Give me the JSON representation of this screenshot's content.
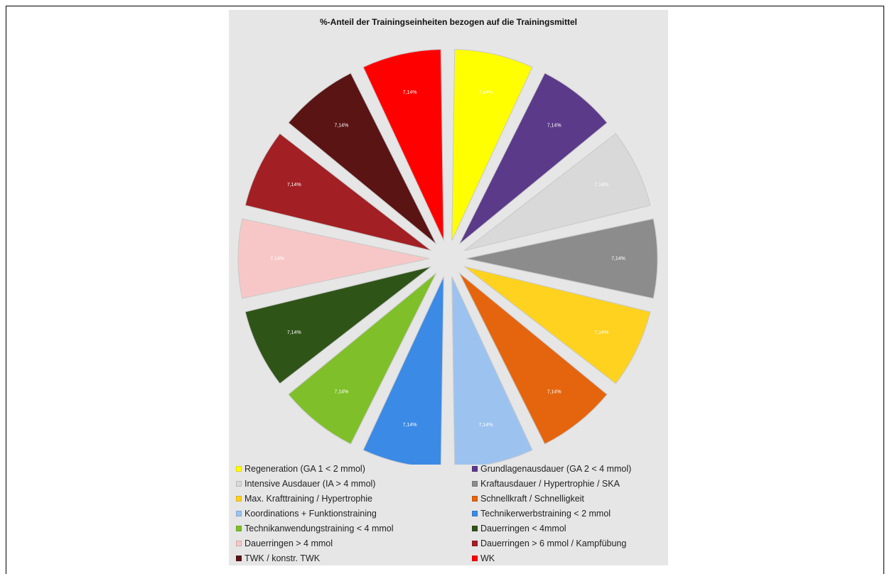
{
  "chart_data": {
    "type": "pie",
    "title": "%-Anteil der Trainingseinheiten bezogen auf die Trainingsmittel",
    "exploded": true,
    "legend_position": "bottom",
    "slices": [
      {
        "label": "Regeneration (GA 1 < 2 mmol)",
        "value": 7.14,
        "display": "7,14%",
        "color": "#ffff00"
      },
      {
        "label": "Grundlagenausdauer (GA 2 < 4 mmol)",
        "value": 7.14,
        "display": "7,14%",
        "color": "#5b3a8a"
      },
      {
        "label": "Intensive Ausdauer (IA > 4 mmol)",
        "value": 7.14,
        "display": "7,14%",
        "color": "#d9d9d9"
      },
      {
        "label": "Kraftausdauer / Hypertrophie / SKA",
        "value": 7.14,
        "display": "7,14%",
        "color": "#8c8c8c"
      },
      {
        "label": "Max. Krafttraining / Hypertrophie",
        "value": 7.14,
        "display": "7,14%",
        "color": "#ffd21f"
      },
      {
        "label": "Schnellkraft / Schnelligkeit",
        "value": 7.14,
        "display": "7,14%",
        "color": "#e5650f"
      },
      {
        "label": "Koordinations + Funktionstraining",
        "value": 7.14,
        "display": "7,14%",
        "color": "#9cc3f0"
      },
      {
        "label": "Technikerwerbstraining < 2 mmol",
        "value": 7.14,
        "display": "7,14%",
        "color": "#3b8ae6"
      },
      {
        "label": "Technikanwendungstraining < 4 mmol",
        "value": 7.14,
        "display": "7,14%",
        "color": "#7fbf2a"
      },
      {
        "label": "Dauerringen < 4mmol",
        "value": 7.14,
        "display": "7,14%",
        "color": "#2f5418"
      },
      {
        "label": "Dauerringen > 4 mmol",
        "value": 7.14,
        "display": "7,14%",
        "color": "#f7c7c7"
      },
      {
        "label": "Dauerringen > 6 mmol / Kampfübung",
        "value": 7.14,
        "display": "7,14%",
        "color": "#a21f24"
      },
      {
        "label": "TWK / konstr. TWK",
        "value": 7.14,
        "display": "7,14%",
        "color": "#5a1414"
      },
      {
        "label": "WK",
        "value": 7.14,
        "display": "7,14%",
        "color": "#ff0000"
      }
    ]
  }
}
